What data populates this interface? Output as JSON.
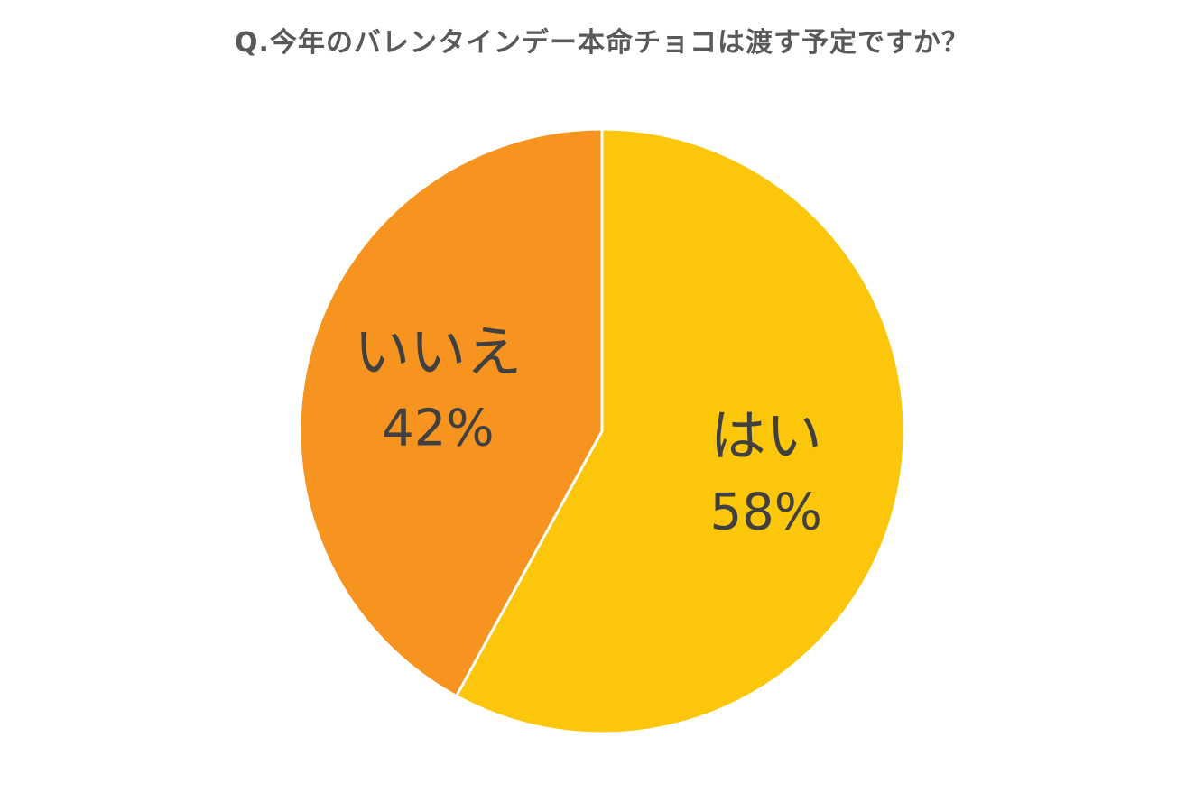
{
  "chart_data": {
    "type": "pie",
    "title": "Q.今年のバレンタインデー本命チョコは渡す予定ですか？",
    "categories": [
      "はい",
      "いいえ"
    ],
    "values": [
      58,
      42
    ],
    "value_labels": [
      "58%",
      "42%"
    ],
    "colors": [
      "#FCC60A",
      "#F7941F"
    ],
    "slice_border_color": "#FFFFFF",
    "legend": "none",
    "start_angle": "12 o'clock",
    "direction": "clockwise"
  }
}
